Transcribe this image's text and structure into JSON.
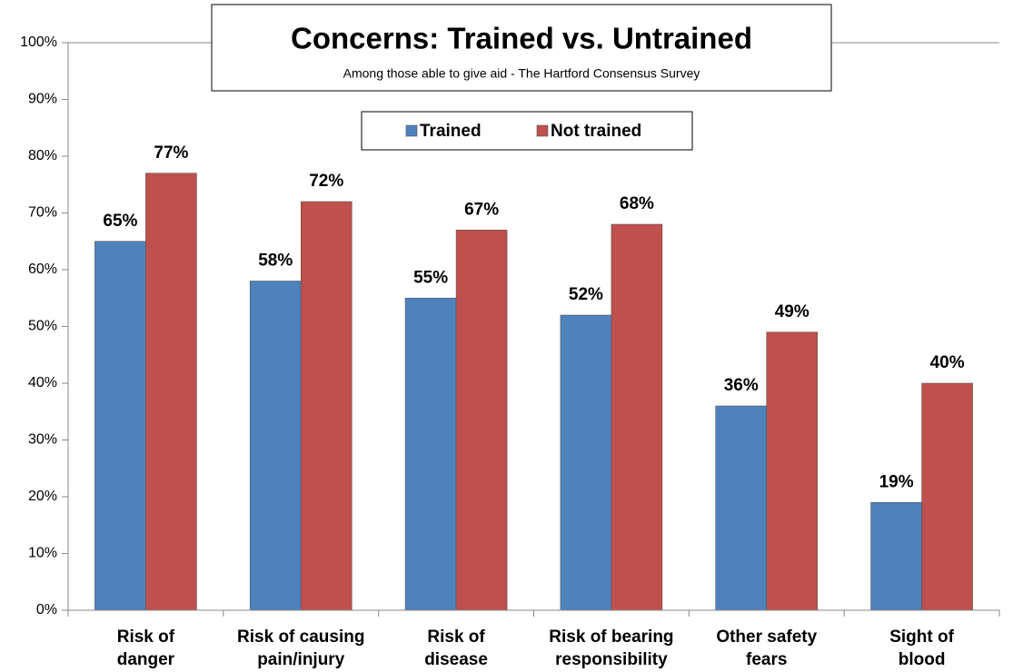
{
  "chart_data": {
    "type": "bar",
    "title": "Concerns: Trained vs. Untrained",
    "subtitle": "Among those able to give aid - The Hartford Consensus Survey",
    "categories": [
      [
        "Risk of",
        "danger"
      ],
      [
        "Risk of causing",
        "pain/injury"
      ],
      [
        "Risk of",
        "disease"
      ],
      [
        "Risk of bearing",
        "responsibility"
      ],
      [
        "Other safety",
        "fears"
      ],
      [
        "Sight of",
        "blood"
      ]
    ],
    "series": [
      {
        "name": "Trained",
        "color": "#4f81bd",
        "values": [
          65,
          58,
          55,
          52,
          36,
          19
        ],
        "value_labels": [
          "65%",
          "58%",
          "55%",
          "52%",
          "36%",
          "19%"
        ]
      },
      {
        "name": "Not trained",
        "color": "#c0504d",
        "values": [
          77,
          72,
          67,
          68,
          49,
          40
        ],
        "value_labels": [
          "77%",
          "72%",
          "67%",
          "68%",
          "49%",
          "40%"
        ]
      }
    ],
    "ylim": [
      0,
      100
    ],
    "yticks": [
      {
        "value": 0,
        "label": "0%"
      },
      {
        "value": 10,
        "label": "10%"
      },
      {
        "value": 20,
        "label": "20%"
      },
      {
        "value": 30,
        "label": "30%"
      },
      {
        "value": 40,
        "label": "40%"
      },
      {
        "value": 50,
        "label": "50%"
      },
      {
        "value": 60,
        "label": "60%"
      },
      {
        "value": 70,
        "label": "70%"
      },
      {
        "value": 80,
        "label": "80%"
      },
      {
        "value": 90,
        "label": "90%"
      },
      {
        "value": 100,
        "label": "100%"
      }
    ],
    "legend": "top"
  }
}
